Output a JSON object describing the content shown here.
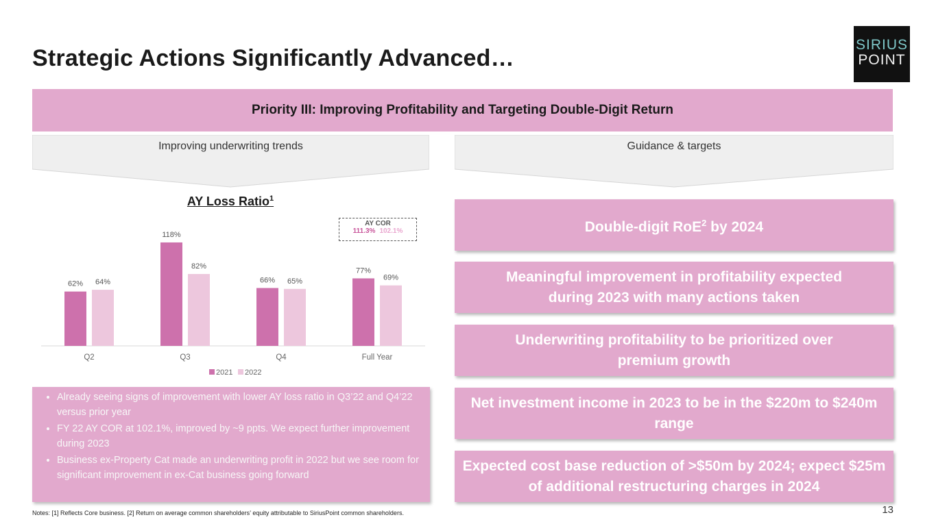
{
  "title": "Strategic Actions Significantly Advanced…",
  "logo": {
    "line1": "SIRIUS",
    "line2": "POINT"
  },
  "banner": "Priority III: Improving Profitability and Targeting Double-Digit Return",
  "left_header": "Improving underwriting trends",
  "right_header": "Guidance & targets",
  "chart_title_text": "AY Loss Ratio",
  "chart_title_sup": "1",
  "ay_cor": {
    "label": "AY COR",
    "value_2021": "111.3%",
    "value_2022": "102.1%"
  },
  "colors": {
    "accent": "#e2a9cd",
    "series_2021": "#cd71ac",
    "series_2022": "#edc7dd"
  },
  "chart_data": {
    "type": "bar",
    "title": "AY Loss Ratio",
    "categories": [
      "Q2",
      "Q3",
      "Q4",
      "Full Year"
    ],
    "series": [
      {
        "name": "2021",
        "values": [
          62,
          118,
          66,
          77
        ],
        "labels": [
          "62%",
          "118%",
          "66%",
          "77%"
        ]
      },
      {
        "name": "2022",
        "values": [
          64,
          82,
          65,
          69
        ],
        "labels": [
          "64%",
          "82%",
          "65%",
          "69%"
        ]
      }
    ],
    "ylim": [
      0,
      125
    ],
    "legend": "bottom",
    "grid": false
  },
  "bullets": [
    "Already seeing signs of improvement with lower AY loss ratio in Q3’22 and Q4’22 versus prior year",
    "FY 22 AY COR at 102.1%, improved by ~9 ppts. We expect further improvement during 2023",
    "Business ex-Property Cat made an underwriting profit in 2022 but we see room for significant improvement in ex-Cat business going forward"
  ],
  "cards": {
    "roe_pre": "Double-digit RoE",
    "roe_sup": "2",
    "roe_post": " by 2024",
    "profitability": "Meaningful improvement in profitability expected during 2023 with many actions taken",
    "underwriting": "Underwriting profitability to be prioritized over premium growth",
    "investment": "Net investment income in 2023 to be in the $220m to $240m range",
    "cost": "Expected cost base reduction of >$50m by 2024; expect $25m of additional restructuring charges in 2024"
  },
  "notes": "Notes: [1] Reflects Core business. [2] Return on average common shareholders’ equity attributable to SiriusPoint common shareholders.",
  "page_number": "13"
}
